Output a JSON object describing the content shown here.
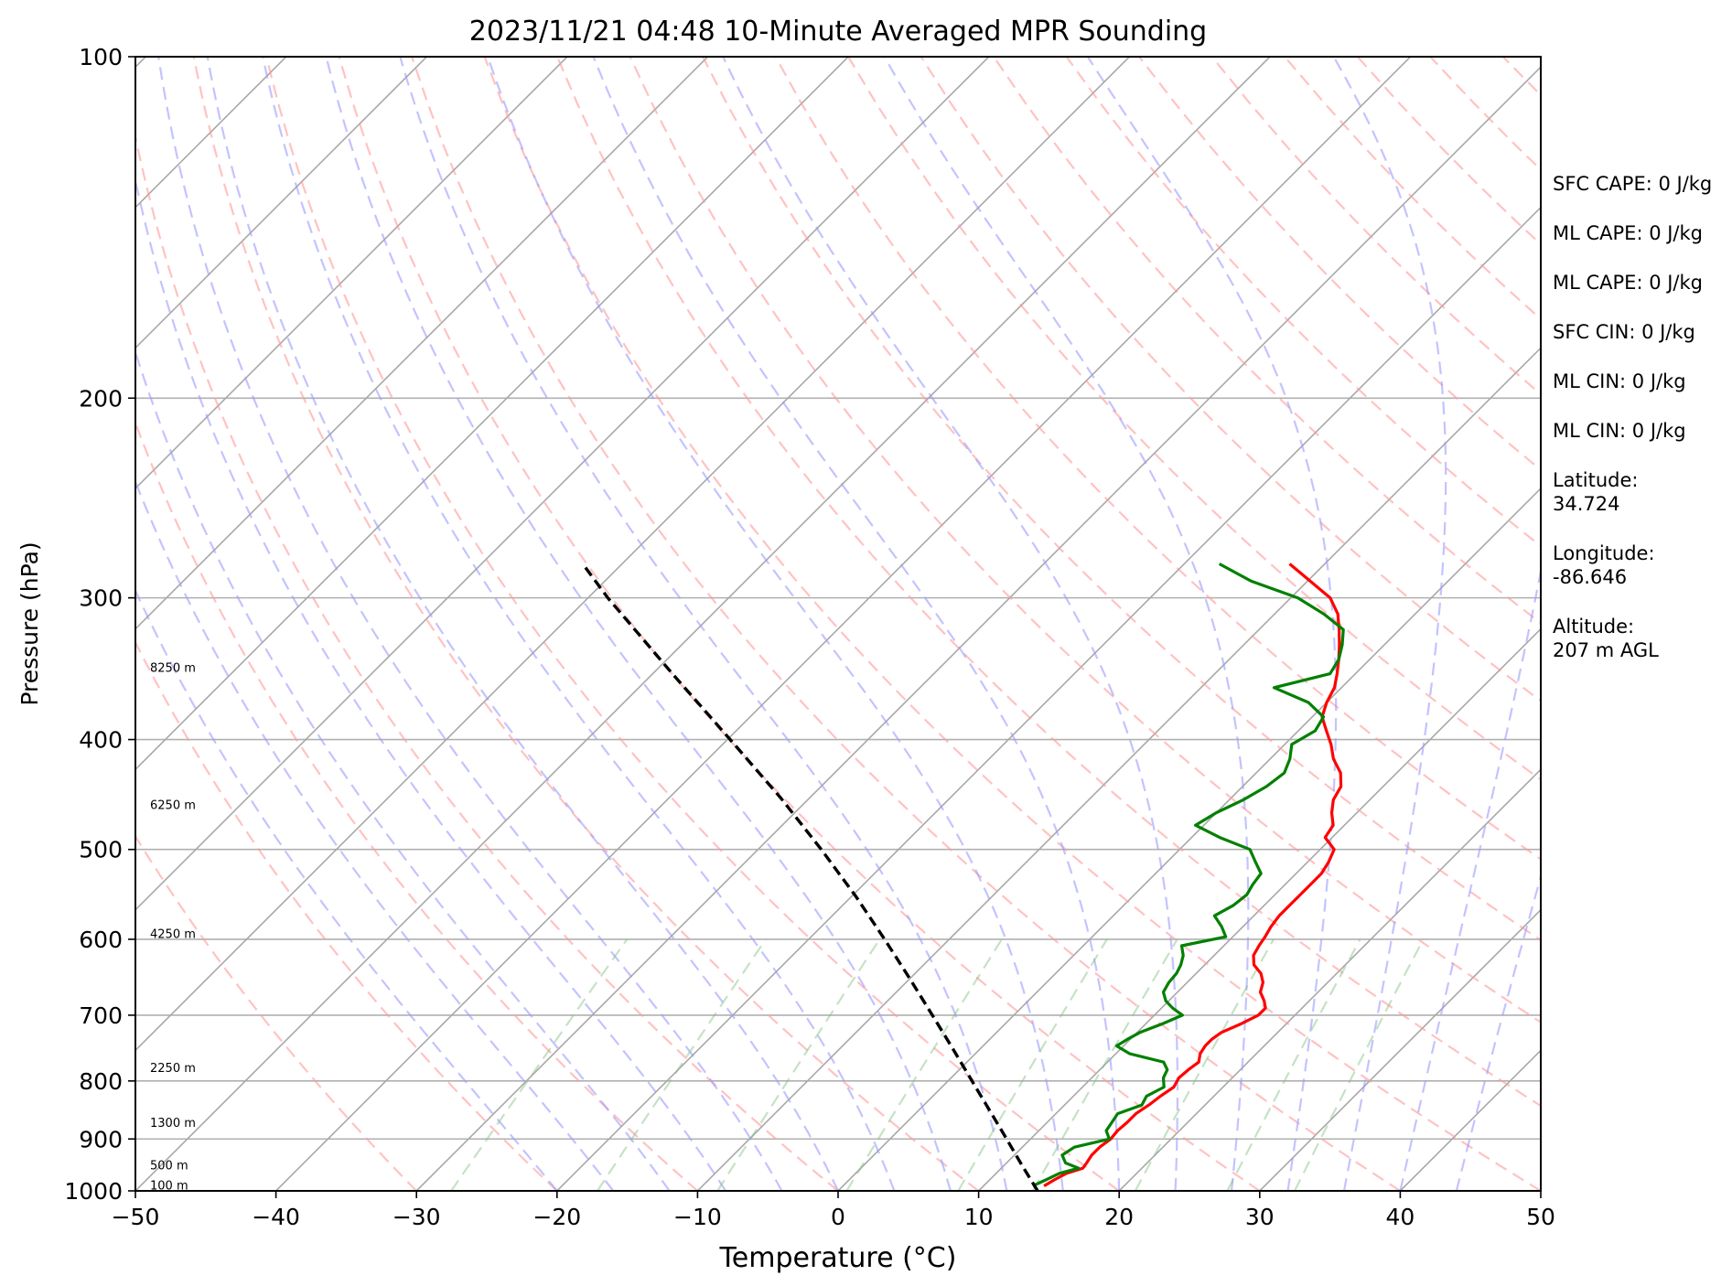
{
  "chart_data": {
    "type": "line",
    "title": "2023/11/21 04:48 10-Minute Averaged MPR Sounding",
    "xlabel": "Temperature (°C)",
    "ylabel": "Pressure (hPa)",
    "xlim": [
      -50,
      50
    ],
    "ylim": [
      1000,
      100
    ],
    "y_scale": "log",
    "x_ticks": [
      -50,
      -40,
      -30,
      -20,
      -10,
      0,
      10,
      20,
      30,
      40,
      50
    ],
    "x_tick_labels": [
      "−50",
      "−40",
      "−30",
      "−20",
      "−10",
      "0",
      "10",
      "20",
      "30",
      "40",
      "50"
    ],
    "y_ticks": [
      100,
      200,
      300,
      400,
      500,
      600,
      700,
      800,
      900,
      1000
    ],
    "y_tick_labels": [
      "100",
      "200",
      "300",
      "400",
      "500",
      "600",
      "700",
      "800",
      "900",
      "1000"
    ],
    "grid": "horizontal at pressure ticks",
    "skew_isotherms": true,
    "dry_adiabats": true,
    "moist_adiabats": true,
    "mixing_ratio_lines": true,
    "series": [
      {
        "color": "#ff0000",
        "pressure": [
          990,
          978,
          965,
          955,
          945,
          930,
          915,
          900,
          885,
          870,
          855,
          840,
          825,
          810,
          795,
          782,
          770,
          757,
          745,
          735,
          725,
          712,
          700,
          690,
          680,
          668,
          655,
          643,
          632,
          620,
          608,
          597,
          585,
          572,
          560,
          548,
          537,
          525,
          513,
          500,
          488,
          476,
          464,
          452,
          440,
          428,
          416,
          404,
          393,
          382,
          371,
          360,
          350,
          340,
          330,
          320,
          310,
          300,
          290,
          280
        ],
        "values": [
          14.3,
          14.6,
          15.0,
          15.8,
          15.7,
          15.5,
          15.5,
          15.7,
          15.6,
          15.7,
          15.7,
          16.0,
          16.2,
          16.5,
          16.2,
          16.3,
          16.5,
          16.0,
          15.8,
          15.8,
          16.0,
          16.8,
          17.4,
          17.4,
          16.8,
          15.9,
          15.4,
          14.6,
          13.5,
          12.8,
          12.5,
          12.3,
          12.0,
          11.8,
          11.8,
          11.8,
          11.8,
          11.8,
          11.5,
          11.0,
          9.5,
          9.2,
          8.2,
          7.4,
          7.0,
          6.0,
          4.5,
          3.3,
          2.0,
          0.7,
          0.0,
          -0.5,
          -1.3,
          -2.2,
          -3.2,
          -4.3,
          -5.5,
          -7.2,
          -9.8,
          -12.5
        ]
      },
      {
        "color": "#008000",
        "pressure": [
          990,
          978,
          965,
          955,
          945,
          930,
          915,
          900,
          885,
          870,
          855,
          840,
          825,
          810,
          795,
          782,
          770,
          757,
          745,
          735,
          725,
          712,
          700,
          690,
          680,
          668,
          655,
          643,
          632,
          620,
          608,
          597,
          585,
          572,
          560,
          548,
          537,
          525,
          513,
          500,
          488,
          476,
          464,
          452,
          440,
          428,
          416,
          404,
          393,
          382,
          371,
          360,
          350,
          340,
          330,
          320,
          310,
          300,
          290,
          280
        ],
        "values": [
          13.5,
          14.0,
          14.5,
          15.5,
          14.2,
          13.4,
          13.7,
          15.6,
          14.8,
          14.6,
          14.4,
          15.5,
          15.2,
          15.8,
          15.1,
          14.8,
          14.0,
          11.0,
          9.5,
          9.8,
          10.2,
          11.2,
          12.0,
          10.8,
          9.8,
          9.0,
          8.7,
          8.6,
          8.3,
          7.8,
          7.0,
          9.5,
          8.5,
          7.2,
          7.8,
          8.0,
          7.7,
          7.5,
          6.3,
          5.0,
          2.0,
          -0.6,
          0.0,
          1.0,
          1.7,
          2.0,
          1.4,
          0.5,
          1.2,
          0.8,
          -1.3,
          -4.8,
          -1.8,
          -2.2,
          -3.0,
          -4.0,
          -6.5,
          -9.5,
          -14.0,
          -17.5
        ]
      },
      {
        "color": "#000000",
        "dashed": true,
        "pressure": [
          1000,
          950,
          900,
          850,
          800,
          750,
          700,
          650,
          600,
          550,
          500,
          450,
          400,
          350,
          300,
          280
        ],
        "values": [
          14.2,
          11.3,
          8.3,
          5.1,
          1.7,
          -1.9,
          -5.8,
          -10.0,
          -14.6,
          -19.7,
          -25.5,
          -32.1,
          -39.8,
          -48.6,
          -58.6,
          -62.8
        ]
      }
    ],
    "height_labels": [
      {
        "text": "100 m",
        "pressure": 990
      },
      {
        "text": "500 m",
        "pressure": 950
      },
      {
        "text": "1300 m",
        "pressure": 872
      },
      {
        "text": "2250 m",
        "pressure": 780
      },
      {
        "text": "4250 m",
        "pressure": 594
      },
      {
        "text": "6250 m",
        "pressure": 457
      },
      {
        "text": "8250 m",
        "pressure": 346
      }
    ]
  },
  "info": [
    "SFC CAPE: 0 J/kg",
    "ML CAPE: 0 J/kg",
    "ML CAPE: 0 J/kg",
    "SFC CIN: 0 J/kg",
    "ML CIN: 0 J/kg",
    "ML CIN: 0 J/kg",
    "Latitude:\n34.724",
    "Longitude:\n-86.646",
    "Altitude:\n207 m AGL"
  ]
}
